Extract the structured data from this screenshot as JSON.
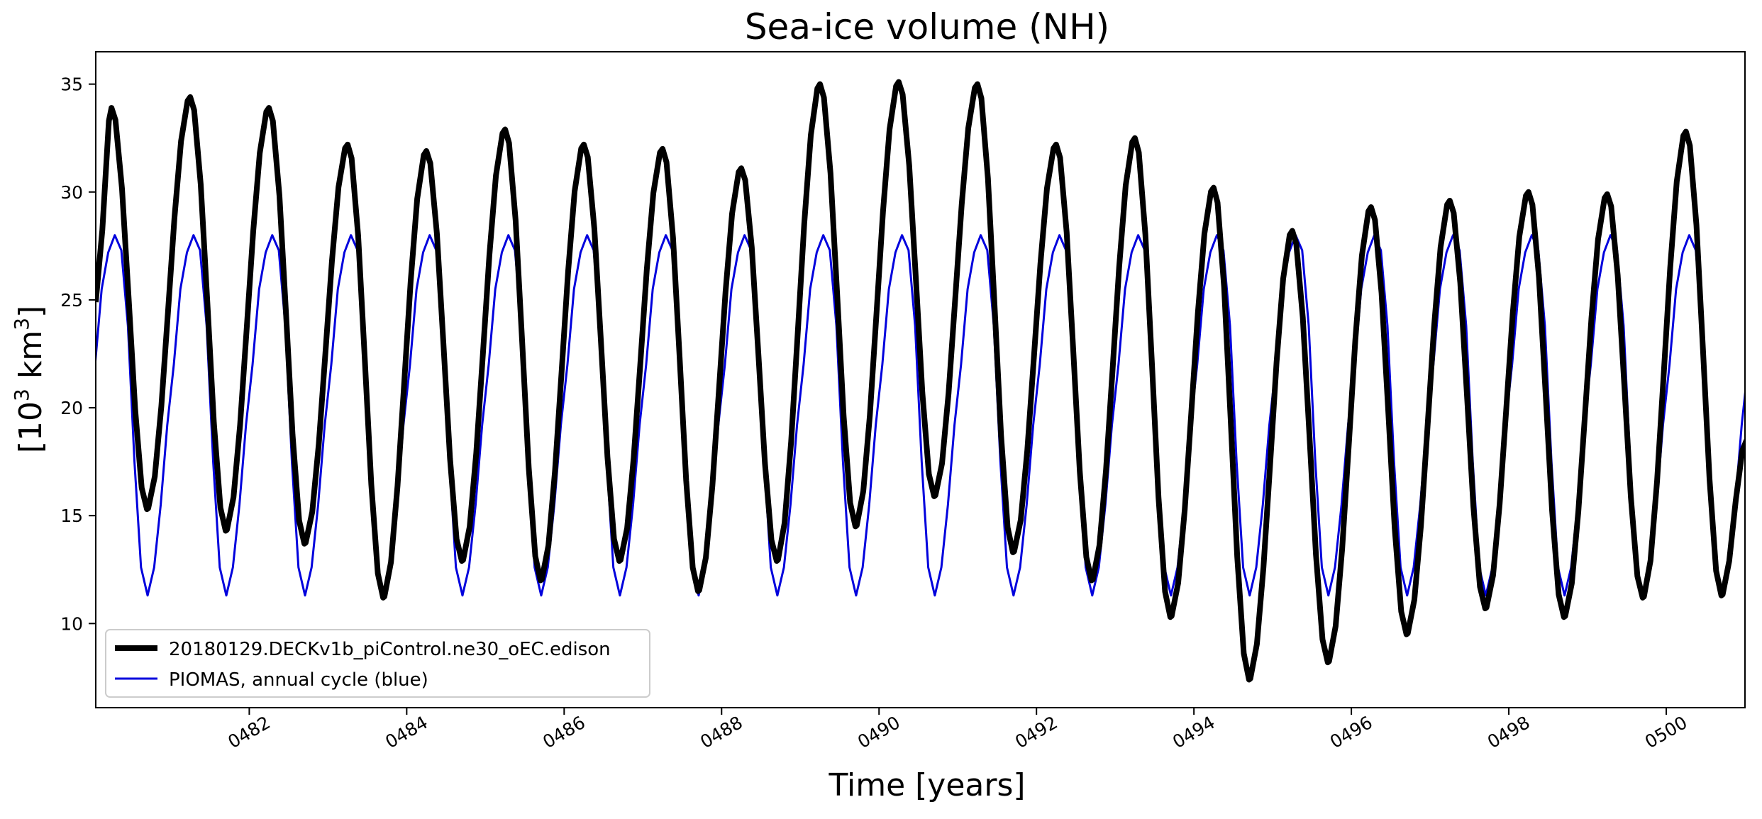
{
  "chart_data": {
    "type": "line",
    "title": "Sea-ice volume (NH)",
    "xlabel": "Time [years]",
    "ylabel_base": "[10",
    "ylabel_exp1": "3",
    "ylabel_mid": " km",
    "ylabel_exp2": "3",
    "ylabel_end": "]",
    "xlim": [
      480.05,
      501.0
    ],
    "ylim": [
      6.1,
      36.5
    ],
    "x_ticks": [
      {
        "value": 482,
        "label": "0482"
      },
      {
        "value": 484,
        "label": "0484"
      },
      {
        "value": 486,
        "label": "0486"
      },
      {
        "value": 488,
        "label": "0488"
      },
      {
        "value": 490,
        "label": "0490"
      },
      {
        "value": 492,
        "label": "0492"
      },
      {
        "value": 494,
        "label": "0494"
      },
      {
        "value": 496,
        "label": "0496"
      },
      {
        "value": 498,
        "label": "0498"
      },
      {
        "value": 500,
        "label": "0500"
      }
    ],
    "y_ticks": [
      {
        "value": 10,
        "label": "10"
      },
      {
        "value": 15,
        "label": "15"
      },
      {
        "value": 20,
        "label": "20"
      },
      {
        "value": 25,
        "label": "25"
      },
      {
        "value": 30,
        "label": "30"
      },
      {
        "value": 35,
        "label": "35"
      }
    ],
    "grid": false,
    "legend_position": "lower-left",
    "series": [
      {
        "name": "20180129.DECKv1b_piControl.ne30_oEC.edison",
        "color": "#000000",
        "style": "thick",
        "start_year": 480,
        "annual_max": [
          33.9,
          34.4,
          33.9,
          32.2,
          31.9,
          32.9,
          32.2,
          32.0,
          31.1,
          35.0,
          35.1,
          35.0,
          32.2,
          32.5,
          30.2,
          28.2,
          29.3,
          29.6,
          30.0,
          29.9,
          32.8
        ],
        "annual_min": [
          15.3,
          14.3,
          13.7,
          11.2,
          12.9,
          12.0,
          12.9,
          11.5,
          12.9,
          14.5,
          15.9,
          13.3,
          12.0,
          10.3,
          7.4,
          8.2,
          9.5,
          10.7,
          10.3,
          11.2,
          11.3
        ],
        "start_value": 24.9,
        "end_value": 18.5
      },
      {
        "name": "PIOMAS, annual cycle (blue)",
        "color": "#0000dd",
        "style": "thin",
        "annual_cycle": [
          22.0,
          25.5,
          27.2,
          28.0,
          27.3,
          23.8,
          17.5,
          12.6,
          11.3,
          12.6,
          15.5,
          19.2
        ]
      }
    ]
  }
}
